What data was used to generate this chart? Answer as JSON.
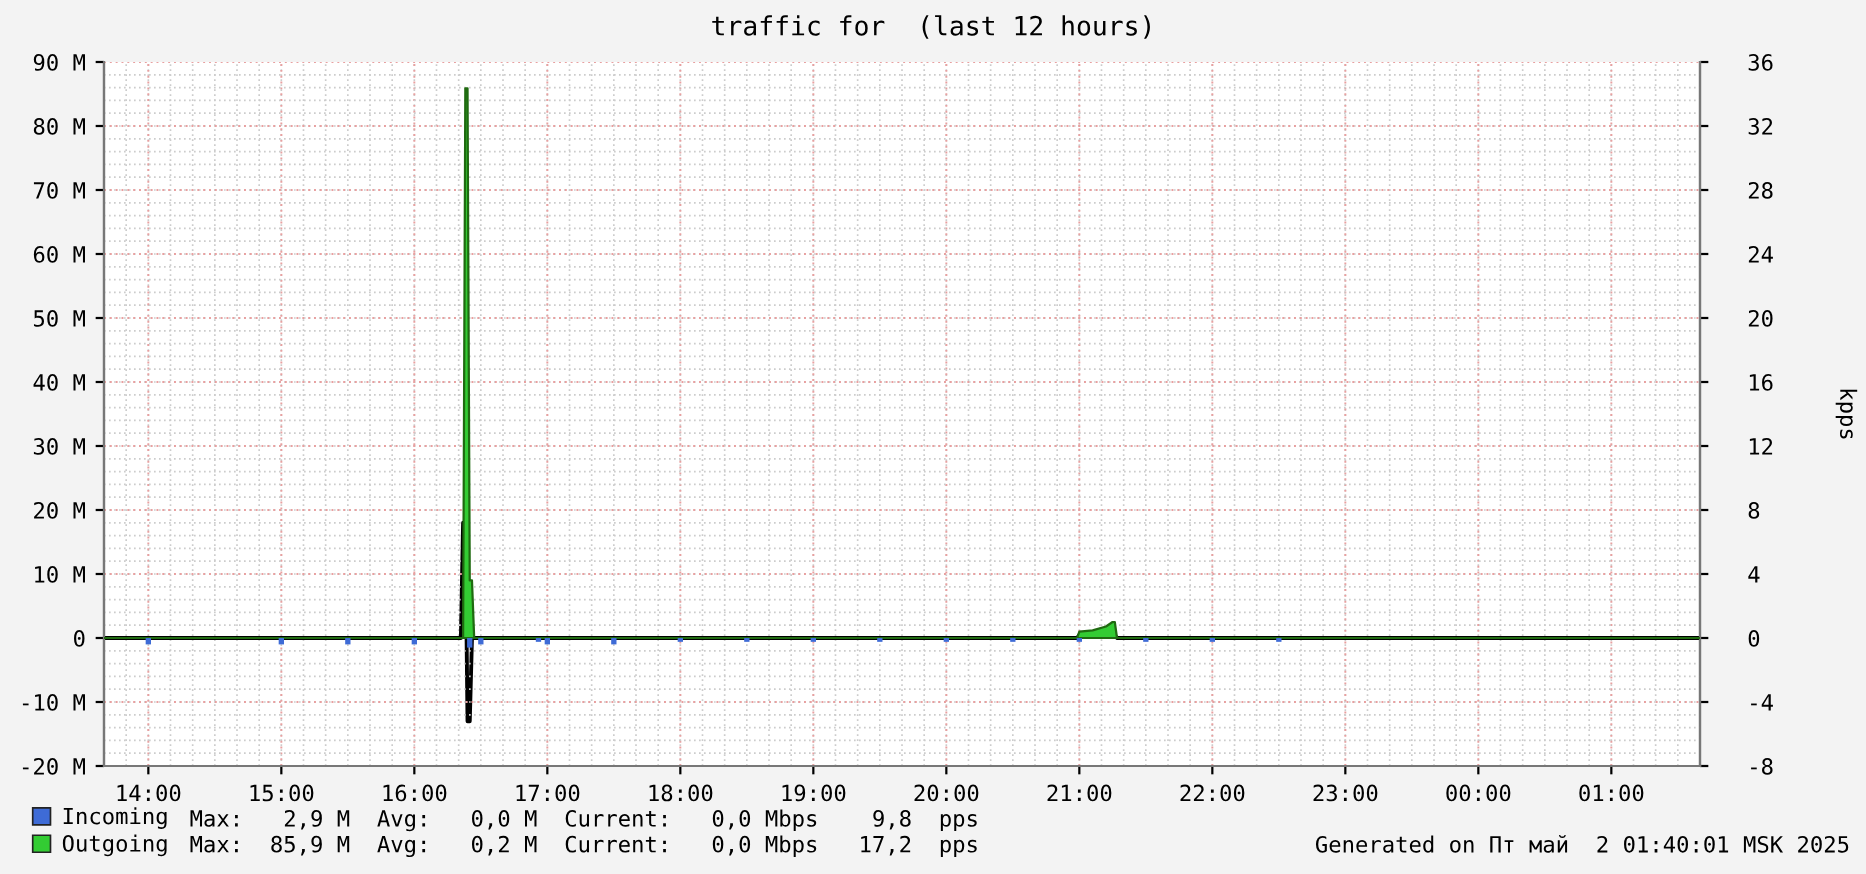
{
  "chart_data": {
    "type": "area",
    "title": "traffic for  (last 12 hours)",
    "y2label": "kpps",
    "xlim": [
      "2025-05-01T13:40",
      "2025-05-02T01:40"
    ],
    "xticks": [
      {
        "value": "2025-05-01T14:00",
        "label": "14:00"
      },
      {
        "value": "2025-05-01T15:00",
        "label": "15:00"
      },
      {
        "value": "2025-05-01T16:00",
        "label": "16:00"
      },
      {
        "value": "2025-05-01T17:00",
        "label": "17:00"
      },
      {
        "value": "2025-05-01T18:00",
        "label": "18:00"
      },
      {
        "value": "2025-05-01T19:00",
        "label": "19:00"
      },
      {
        "value": "2025-05-01T20:00",
        "label": "20:00"
      },
      {
        "value": "2025-05-01T21:00",
        "label": "21:00"
      },
      {
        "value": "2025-05-01T22:00",
        "label": "22:00"
      },
      {
        "value": "2025-05-01T23:00",
        "label": "23:00"
      },
      {
        "value": "2025-05-02T00:00",
        "label": "00:00"
      },
      {
        "value": "2025-05-02T01:00",
        "label": "01:00"
      }
    ],
    "ylim": [
      -20,
      90
    ],
    "yticks": [
      {
        "value": -20,
        "label": "-20 M"
      },
      {
        "value": -10,
        "label": "-10 M"
      },
      0,
      {
        "value": 10,
        "label": "10 M"
      },
      {
        "value": 20,
        "label": "20 M"
      },
      {
        "value": 30,
        "label": "30 M"
      },
      {
        "value": 40,
        "label": "40 M"
      },
      {
        "value": 50,
        "label": "50 M"
      },
      {
        "value": 60,
        "label": "60 M"
      },
      {
        "value": 70,
        "label": "70 M"
      },
      {
        "value": 80,
        "label": "80 M"
      },
      {
        "value": 90,
        "label": "90 M"
      }
    ],
    "y2lim": [
      -8,
      36
    ],
    "y2ticks": [
      -8,
      -4,
      0,
      4,
      8,
      12,
      16,
      20,
      24,
      28,
      32,
      36
    ],
    "grid": true,
    "legend": "bottom left",
    "series": [
      {
        "name": "Incoming",
        "type": "bar",
        "color": "#3e6bd6",
        "x": [
          "2025-05-01T14:00",
          "2025-05-01T15:00",
          "2025-05-01T15:30",
          "2025-05-01T16:00",
          "2025-05-01T16:25",
          "2025-05-01T16:30",
          "2025-05-01T16:56",
          "2025-05-01T17:00",
          "2025-05-01T17:30",
          "2025-05-01T18:00",
          "2025-05-01T18:30",
          "2025-05-01T19:00",
          "2025-05-01T19:30",
          "2025-05-01T20:00",
          "2025-05-01T20:30",
          "2025-05-01T21:00",
          "2025-05-01T21:30",
          "2025-05-01T22:00",
          "2025-05-01T22:30"
        ],
        "values": [
          -1,
          -1,
          -1,
          -1,
          -1.5,
          -1,
          -0.6,
          -1,
          -1,
          -0.6,
          -0.6,
          -0.6,
          -0.6,
          -0.6,
          -0.6,
          -0.6,
          -0.6,
          -0.6,
          -0.6
        ]
      },
      {
        "name": "Outgoing",
        "color": "#33cc33",
        "x": [
          "2025-05-01T13:40",
          "2025-05-01T16:22",
          "2025-05-01T16:23",
          "2025-05-01T16:24",
          "2025-05-01T16:25",
          "2025-05-01T16:26",
          "2025-05-01T16:27",
          "2025-05-01T20:59",
          "2025-05-01T21:00",
          "2025-05-01T21:06",
          "2025-05-01T21:12",
          "2025-05-01T21:15",
          "2025-05-01T21:16",
          "2025-05-01T21:17",
          "2025-05-02T01:40"
        ],
        "values": [
          0,
          0,
          85.9,
          85.9,
          9,
          9,
          0,
          0,
          1.0,
          1.2,
          1.8,
          2.5,
          2.5,
          0,
          0
        ]
      },
      {
        "type": "line",
        "axis": "y2",
        "color": "#000000",
        "x": [
          "2025-05-01T13:40",
          "2025-05-01T16:21",
          "2025-05-01T16:22",
          "2025-05-01T16:23",
          "2025-05-01T16:24",
          "2025-05-01T16:25",
          "2025-05-01T16:26",
          "2025-05-01T20:59",
          "2025-05-01T21:00",
          "2025-05-01T21:16",
          "2025-05-01T21:17",
          "2025-05-02T01:40"
        ],
        "values": [
          0,
          0,
          7.2,
          7.2,
          -5.2,
          -5.2,
          0,
          0,
          0.2,
          0.2,
          0,
          0
        ]
      }
    ],
    "annotations": [
      "Max:   2,9 M  Avg:   0,0 M  Current:   0,0 Mbps    9,8  pps",
      "Max:  85,9 M  Avg:   0,2 M  Current:   0,0 Mbps   17,2  pps",
      "Generated on Пт май  2 01:40:01 MSK 2025"
    ]
  }
}
